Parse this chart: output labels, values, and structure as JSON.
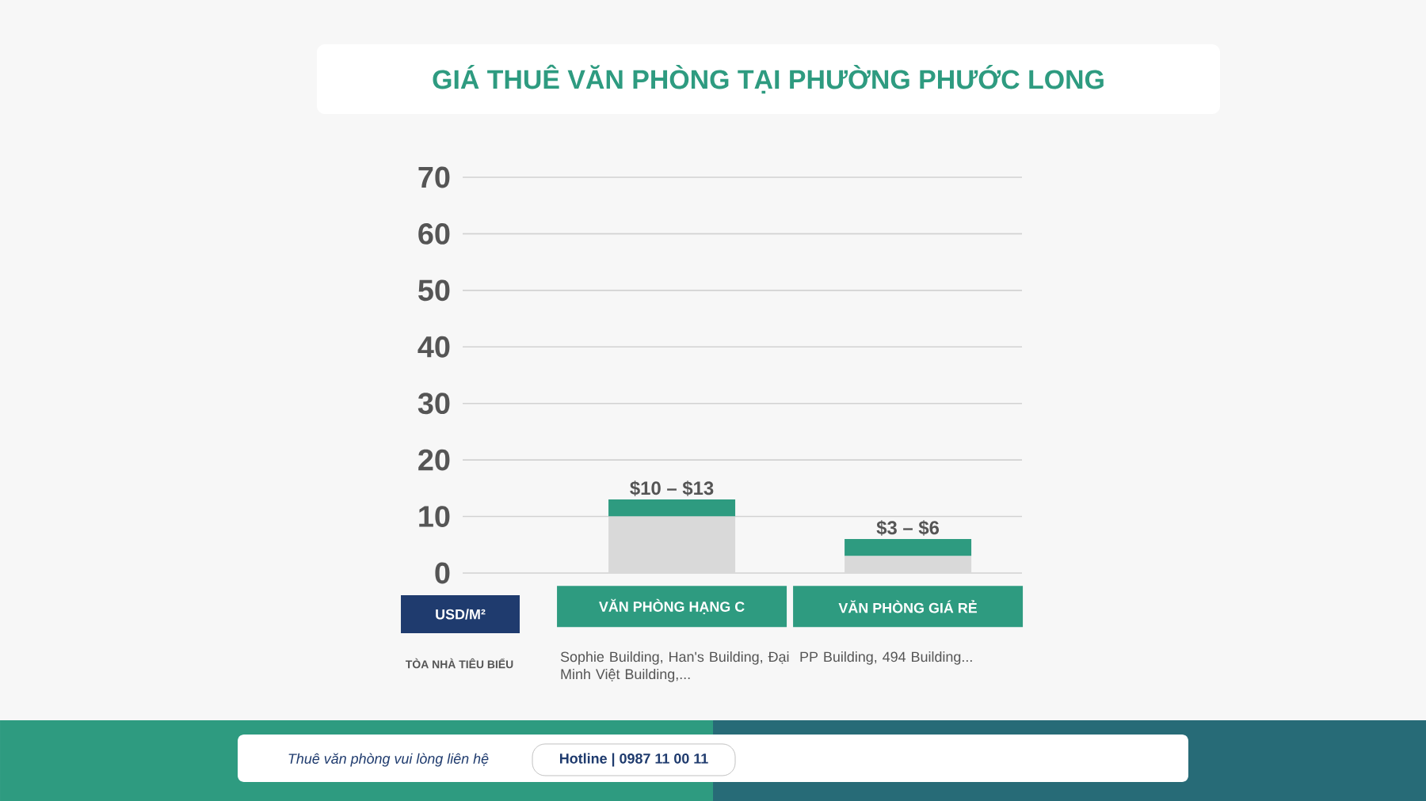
{
  "chart_data": {
    "type": "bar",
    "title": "GIÁ THUÊ VĂN PHÒNG TẠI PHƯỜNG PHƯỚC LONG",
    "categories": [
      "VĂN PHÒNG HẠNG C",
      "VĂN PHÒNG GIÁ RẺ"
    ],
    "stacked": true,
    "series": [
      {
        "color": "#d9d9d9",
        "values": [
          10,
          3
        ]
      },
      {
        "color": "#2e9b80",
        "values": [
          3,
          3
        ]
      }
    ],
    "ylim": [
      0,
      70
    ],
    "yticks": [
      0,
      10,
      20,
      30,
      40,
      50,
      60,
      70
    ],
    "grid": "y",
    "annotations": [
      {
        "text": "$10 – $13",
        "x": "VĂN PHÒNG HẠNG C",
        "y": 13
      },
      {
        "text": "$3 – $6",
        "x": "VĂN PHÒNG GIÁ RẺ",
        "y": 6
      },
      "USD/M²",
      "TÒA NHÀ TIÊU BIỂU",
      "Sophie Building, Han's Building, Đại Minh Việt Building,...",
      "PP Building, 494 Building...",
      "Thuê văn phòng vui lòng liên hệ",
      "Hotline | 0987 11 00 11"
    ]
  }
}
